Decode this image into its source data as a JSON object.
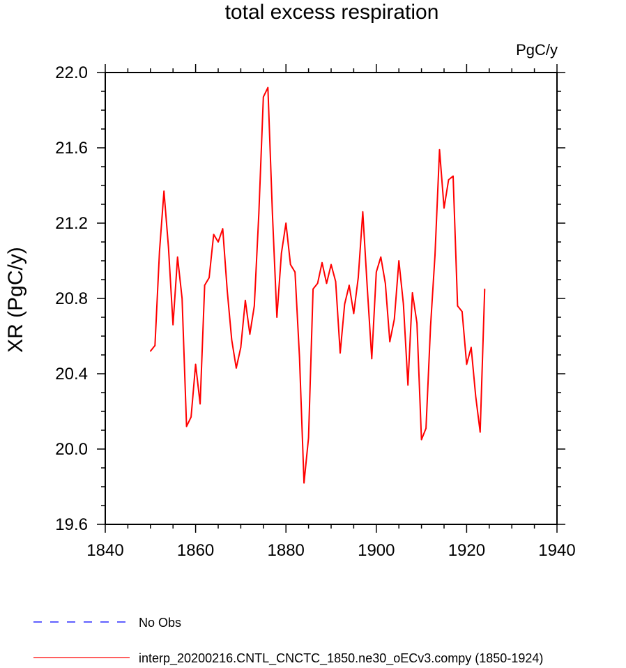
{
  "chart_data": {
    "type": "line",
    "title": "total excess respiration",
    "units_label": "PgC/y",
    "ylabel": "XR  (PgC/y)",
    "xlabel": "",
    "xlim": [
      1840,
      1940
    ],
    "ylim": [
      19.6,
      22.0
    ],
    "x_ticks": [
      1840,
      1860,
      1880,
      1900,
      1920,
      1940
    ],
    "x_tick_labels": [
      "1840",
      "1860",
      "1880",
      "1900",
      "1920",
      "1940"
    ],
    "y_ticks": [
      19.6,
      20.0,
      20.4,
      20.8,
      21.2,
      21.6,
      22.0
    ],
    "y_tick_labels": [
      "19.6",
      "20.0",
      "20.4",
      "20.8",
      "21.2",
      "21.6",
      "22.0"
    ],
    "grid": false,
    "legend_position": "bottom-left",
    "legend": [
      {
        "label": "No Obs",
        "color": "#0000ff",
        "dash": "dashed"
      },
      {
        "label": "interp_20200216.CNTL_CNCTC_1850.ne30_oECv3.compy (1850-1924)",
        "color": "#ff0000",
        "dash": "solid"
      }
    ],
    "series": [
      {
        "name": "interp_20200216.CNTL_CNCTC_1850.ne30_oECv3.compy (1850-1924)",
        "color": "#ff0000",
        "x": [
          1850,
          1851,
          1852,
          1853,
          1854,
          1855,
          1856,
          1857,
          1858,
          1859,
          1860,
          1861,
          1862,
          1863,
          1864,
          1865,
          1866,
          1867,
          1868,
          1869,
          1870,
          1871,
          1872,
          1873,
          1874,
          1875,
          1876,
          1877,
          1878,
          1879,
          1880,
          1881,
          1882,
          1883,
          1884,
          1885,
          1886,
          1887,
          1888,
          1889,
          1890,
          1891,
          1892,
          1893,
          1894,
          1895,
          1896,
          1897,
          1898,
          1899,
          1900,
          1901,
          1902,
          1903,
          1904,
          1905,
          1906,
          1907,
          1908,
          1909,
          1910,
          1911,
          1912,
          1913,
          1914,
          1915,
          1916,
          1917,
          1918,
          1919,
          1920,
          1921,
          1922,
          1923,
          1924
        ],
        "values": [
          20.52,
          20.55,
          21.05,
          21.37,
          21.07,
          20.66,
          21.02,
          20.8,
          20.12,
          20.17,
          20.45,
          20.24,
          20.87,
          20.91,
          21.14,
          21.1,
          21.17,
          20.84,
          20.58,
          20.43,
          20.54,
          20.79,
          20.61,
          20.76,
          21.25,
          21.87,
          21.92,
          21.25,
          20.7,
          21.04,
          21.2,
          20.98,
          20.94,
          20.49,
          19.82,
          20.06,
          20.85,
          20.88,
          20.99,
          20.88,
          20.98,
          20.89,
          20.51,
          20.77,
          20.87,
          20.72,
          20.91,
          21.26,
          20.86,
          20.48,
          20.94,
          21.02,
          20.88,
          20.57,
          20.69,
          21.0,
          20.77,
          20.34,
          20.83,
          20.67,
          20.05,
          20.11,
          20.65,
          21.03,
          21.59,
          21.28,
          21.43,
          21.45,
          20.76,
          20.73,
          20.45,
          20.54,
          20.28,
          20.09,
          20.85
        ]
      }
    ]
  }
}
